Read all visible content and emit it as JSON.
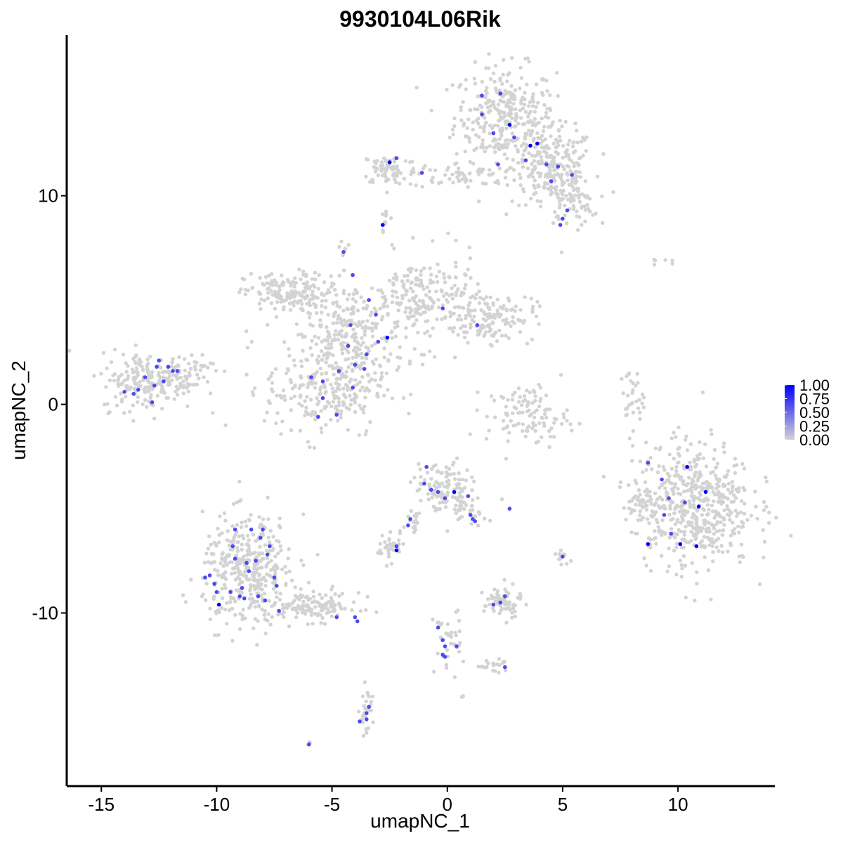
{
  "chart_data": {
    "type": "scatter",
    "title": "9930104L06Rik",
    "xlabel": "umapNC_1",
    "ylabel": "umapNC_2",
    "xlim": [
      -16.5,
      14.2
    ],
    "ylim": [
      -18.3,
      17.7
    ],
    "x_ticks": [
      -15,
      -10,
      -5,
      0,
      5,
      10
    ],
    "x_tick_labels": [
      "-15",
      "-10",
      "-5",
      "0",
      "5",
      "10"
    ],
    "y_ticks": [
      -10,
      0,
      10
    ],
    "y_tick_labels": [
      "-10",
      "0",
      "10"
    ],
    "grid": false,
    "color_scale": {
      "low_color": "#d3d3d3",
      "high_color": "#0000ff",
      "min": 0,
      "max": 1,
      "breaks": [
        1.0,
        0.75,
        0.5,
        0.25,
        0.0
      ],
      "break_labels": [
        "1.00",
        "0.75",
        "0.50",
        "0.25",
        "0.00"
      ],
      "legend_position": "right"
    },
    "background_clusters": [
      {
        "cx": 2.5,
        "cy": 13.8,
        "sx": 1.1,
        "sy": 1.2,
        "n": 320
      },
      {
        "cx": 4.6,
        "cy": 11.4,
        "sx": 0.9,
        "sy": 0.9,
        "n": 200
      },
      {
        "cx": 5.3,
        "cy": 9.7,
        "sx": 0.6,
        "sy": 0.6,
        "n": 80
      },
      {
        "cx": -2.5,
        "cy": 11.3,
        "sx": 0.6,
        "sy": 0.4,
        "n": 70
      },
      {
        "cx": 0.5,
        "cy": 11.0,
        "sx": 1.1,
        "sy": 0.3,
        "n": 60
      },
      {
        "cx": -7.0,
        "cy": 5.3,
        "sx": 0.9,
        "sy": 0.5,
        "n": 160
      },
      {
        "cx": -4.2,
        "cy": 3.3,
        "sx": 1.2,
        "sy": 1.3,
        "n": 260
      },
      {
        "cx": -1.0,
        "cy": 5.0,
        "sx": 1.2,
        "sy": 1.1,
        "n": 200
      },
      {
        "cx": 1.8,
        "cy": 4.2,
        "sx": 1.0,
        "sy": 0.6,
        "n": 140
      },
      {
        "cx": -5.3,
        "cy": 0.8,
        "sx": 1.3,
        "sy": 1.2,
        "n": 240
      },
      {
        "cx": -13.0,
        "cy": 1.1,
        "sx": 1.0,
        "sy": 0.7,
        "n": 180
      },
      {
        "cx": -11.5,
        "cy": 1.6,
        "sx": 0.7,
        "sy": 0.5,
        "n": 60
      },
      {
        "cx": 3.5,
        "cy": -0.5,
        "sx": 0.9,
        "sy": 0.7,
        "n": 110
      },
      {
        "cx": 8.0,
        "cy": 0.3,
        "sx": 0.25,
        "sy": 0.7,
        "n": 30
      },
      {
        "cx": 10.6,
        "cy": -4.8,
        "sx": 1.3,
        "sy": 1.5,
        "n": 560
      },
      {
        "cx": 8.3,
        "cy": -4.5,
        "sx": 0.3,
        "sy": 0.3,
        "n": 20
      },
      {
        "cx": -8.6,
        "cy": -8.0,
        "sx": 1.0,
        "sy": 1.3,
        "n": 380
      },
      {
        "cx": -5.8,
        "cy": -9.7,
        "sx": 1.0,
        "sy": 0.35,
        "n": 120
      },
      {
        "cx": -0.2,
        "cy": -4.0,
        "sx": 0.6,
        "sy": 0.6,
        "n": 110
      },
      {
        "cx": 0.9,
        "cy": -5.0,
        "sx": 0.4,
        "sy": 0.4,
        "n": 40
      },
      {
        "cx": -1.5,
        "cy": -5.6,
        "sx": 0.2,
        "sy": 0.5,
        "n": 20
      },
      {
        "cx": -2.5,
        "cy": -6.9,
        "sx": 0.3,
        "sy": 0.3,
        "n": 40
      },
      {
        "cx": 2.4,
        "cy": -9.5,
        "sx": 0.4,
        "sy": 0.4,
        "n": 70
      },
      {
        "cx": 0.0,
        "cy": -11.4,
        "sx": 0.3,
        "sy": 0.8,
        "n": 35
      },
      {
        "cx": 2.0,
        "cy": -12.5,
        "sx": 0.4,
        "sy": 0.15,
        "n": 20
      },
      {
        "cx": -3.5,
        "cy": -14.8,
        "sx": 0.15,
        "sy": 0.6,
        "n": 25
      },
      {
        "cx": 5.0,
        "cy": -7.3,
        "sx": 0.15,
        "sy": 0.3,
        "n": 12
      },
      {
        "cx": -2.7,
        "cy": 8.8,
        "sx": 0.1,
        "sy": 0.25,
        "n": 10
      },
      {
        "cx": -4.5,
        "cy": 7.4,
        "sx": 0.1,
        "sy": 0.2,
        "n": 6
      },
      {
        "cx": 9.5,
        "cy": 6.8,
        "sx": 0.25,
        "sy": 0.1,
        "n": 6
      },
      {
        "cx": -6.0,
        "cy": -16.3,
        "sx": 0.05,
        "sy": 0.05,
        "n": 3
      },
      {
        "cx": 0.7,
        "cy": -14.0,
        "sx": 0.05,
        "sy": 0.05,
        "n": 3
      }
    ],
    "expressing_cells": [
      {
        "x": 1.5,
        "y": 14.8,
        "v": 0.65
      },
      {
        "x": 2.3,
        "y": 14.9,
        "v": 0.65
      },
      {
        "x": 1.5,
        "y": 13.9,
        "v": 0.65
      },
      {
        "x": 2.0,
        "y": 13.0,
        "v": 0.65
      },
      {
        "x": 2.7,
        "y": 13.4,
        "v": 1.0
      },
      {
        "x": 2.9,
        "y": 12.8,
        "v": 0.65
      },
      {
        "x": 3.6,
        "y": 12.4,
        "v": 1.0
      },
      {
        "x": 3.9,
        "y": 12.5,
        "v": 1.0
      },
      {
        "x": 3.4,
        "y": 11.7,
        "v": 0.65
      },
      {
        "x": 4.3,
        "y": 11.5,
        "v": 0.65
      },
      {
        "x": 4.8,
        "y": 11.4,
        "v": 0.65
      },
      {
        "x": 5.4,
        "y": 11.0,
        "v": 0.65
      },
      {
        "x": 4.5,
        "y": 10.7,
        "v": 0.65
      },
      {
        "x": 2.2,
        "y": 11.5,
        "v": 0.65
      },
      {
        "x": 5.2,
        "y": 9.3,
        "v": 0.65
      },
      {
        "x": 5.0,
        "y": 8.9,
        "v": 0.65
      },
      {
        "x": 4.9,
        "y": 8.6,
        "v": 0.65
      },
      {
        "x": -2.5,
        "y": 11.6,
        "v": 1.0
      },
      {
        "x": -2.2,
        "y": 11.8,
        "v": 0.65
      },
      {
        "x": -1.1,
        "y": 11.1,
        "v": 0.65
      },
      {
        "x": -2.8,
        "y": 8.6,
        "v": 1.0
      },
      {
        "x": -4.5,
        "y": 7.3,
        "v": 0.65
      },
      {
        "x": -4.1,
        "y": 6.2,
        "v": 0.65
      },
      {
        "x": -3.4,
        "y": 5.0,
        "v": 0.65
      },
      {
        "x": -3.1,
        "y": 4.3,
        "v": 0.65
      },
      {
        "x": -4.2,
        "y": 3.8,
        "v": 0.65
      },
      {
        "x": -4.3,
        "y": 2.8,
        "v": 0.65
      },
      {
        "x": -3.5,
        "y": 2.4,
        "v": 0.65
      },
      {
        "x": -3.0,
        "y": 3.0,
        "v": 0.65
      },
      {
        "x": -2.6,
        "y": 3.2,
        "v": 1.0
      },
      {
        "x": -4.7,
        "y": 1.6,
        "v": 0.65
      },
      {
        "x": -4.0,
        "y": 1.9,
        "v": 0.65
      },
      {
        "x": -3.6,
        "y": 1.7,
        "v": 0.65
      },
      {
        "x": -4.1,
        "y": 0.8,
        "v": 0.65
      },
      {
        "x": -5.4,
        "y": 1.1,
        "v": 0.65
      },
      {
        "x": -5.9,
        "y": 1.3,
        "v": 0.65
      },
      {
        "x": -5.4,
        "y": 0.3,
        "v": 0.65
      },
      {
        "x": -5.6,
        "y": -0.6,
        "v": 0.65
      },
      {
        "x": -4.8,
        "y": -0.5,
        "v": 0.65
      },
      {
        "x": -0.2,
        "y": 4.6,
        "v": 0.65
      },
      {
        "x": 1.3,
        "y": 3.8,
        "v": 0.65
      },
      {
        "x": -13.6,
        "y": 0.5,
        "v": 0.65
      },
      {
        "x": -13.4,
        "y": 0.7,
        "v": 0.65
      },
      {
        "x": -12.7,
        "y": 0.9,
        "v": 0.65
      },
      {
        "x": -12.6,
        "y": 1.8,
        "v": 0.65
      },
      {
        "x": -12.5,
        "y": 2.1,
        "v": 0.65
      },
      {
        "x": -12.1,
        "y": 1.8,
        "v": 0.65
      },
      {
        "x": -11.9,
        "y": 1.6,
        "v": 0.65
      },
      {
        "x": -11.7,
        "y": 1.6,
        "v": 0.65
      },
      {
        "x": -12.3,
        "y": 1.1,
        "v": 0.65
      },
      {
        "x": -13.1,
        "y": 1.3,
        "v": 0.65
      },
      {
        "x": -12.8,
        "y": 0.1,
        "v": 0.65
      },
      {
        "x": -14.0,
        "y": 0.6,
        "v": 0.65
      },
      {
        "x": -0.9,
        "y": -3.0,
        "v": 0.65
      },
      {
        "x": -1.0,
        "y": -3.8,
        "v": 0.65
      },
      {
        "x": -0.7,
        "y": -4.1,
        "v": 0.65
      },
      {
        "x": -0.4,
        "y": -4.2,
        "v": 0.65
      },
      {
        "x": 0.3,
        "y": -4.2,
        "v": 1.0
      },
      {
        "x": 0.9,
        "y": -4.4,
        "v": 0.65
      },
      {
        "x": -0.1,
        "y": -4.5,
        "v": 0.65
      },
      {
        "x": 1.0,
        "y": -5.3,
        "v": 0.65
      },
      {
        "x": 1.1,
        "y": -5.5,
        "v": 0.65
      },
      {
        "x": 1.2,
        "y": -5.6,
        "v": 0.65
      },
      {
        "x": -1.6,
        "y": -5.5,
        "v": 0.65
      },
      {
        "x": -1.7,
        "y": -5.8,
        "v": 0.65
      },
      {
        "x": -2.2,
        "y": -6.8,
        "v": 0.65
      },
      {
        "x": -2.2,
        "y": -7.0,
        "v": 1.0
      },
      {
        "x": 2.7,
        "y": -5.0,
        "v": 0.65
      },
      {
        "x": 10.4,
        "y": -3.0,
        "v": 1.0
      },
      {
        "x": 11.2,
        "y": -4.2,
        "v": 1.0
      },
      {
        "x": 10.9,
        "y": -4.9,
        "v": 1.0
      },
      {
        "x": 10.3,
        "y": -4.7,
        "v": 0.65
      },
      {
        "x": 9.6,
        "y": -4.5,
        "v": 0.65
      },
      {
        "x": 9.4,
        "y": -5.3,
        "v": 0.65
      },
      {
        "x": 8.7,
        "y": -6.7,
        "v": 1.0
      },
      {
        "x": 10.1,
        "y": -6.7,
        "v": 1.0
      },
      {
        "x": 10.8,
        "y": -6.8,
        "v": 1.0
      },
      {
        "x": 9.7,
        "y": -6.2,
        "v": 0.65
      },
      {
        "x": 8.7,
        "y": -2.8,
        "v": 0.65
      },
      {
        "x": 9.3,
        "y": -3.6,
        "v": 0.65
      },
      {
        "x": -9.9,
        "y": -9.6,
        "v": 1.0
      },
      {
        "x": -10.0,
        "y": -9.0,
        "v": 0.65
      },
      {
        "x": -10.1,
        "y": -8.6,
        "v": 0.65
      },
      {
        "x": -10.3,
        "y": -8.2,
        "v": 0.65
      },
      {
        "x": -9.4,
        "y": -9.0,
        "v": 0.65
      },
      {
        "x": -9.0,
        "y": -9.2,
        "v": 0.65
      },
      {
        "x": -8.9,
        "y": -8.8,
        "v": 0.65
      },
      {
        "x": -8.6,
        "y": -8.0,
        "v": 0.65
      },
      {
        "x": -8.3,
        "y": -7.5,
        "v": 0.65
      },
      {
        "x": -7.8,
        "y": -7.2,
        "v": 0.65
      },
      {
        "x": -7.7,
        "y": -6.8,
        "v": 0.65
      },
      {
        "x": -8.1,
        "y": -6.4,
        "v": 0.65
      },
      {
        "x": -8.0,
        "y": -6.0,
        "v": 0.65
      },
      {
        "x": -8.5,
        "y": -6.0,
        "v": 0.65
      },
      {
        "x": -9.2,
        "y": -6.0,
        "v": 0.65
      },
      {
        "x": -9.3,
        "y": -6.8,
        "v": 0.65
      },
      {
        "x": -9.2,
        "y": -7.4,
        "v": 0.65
      },
      {
        "x": -8.7,
        "y": -7.6,
        "v": 0.65
      },
      {
        "x": -7.5,
        "y": -8.3,
        "v": 0.65
      },
      {
        "x": -7.4,
        "y": -8.7,
        "v": 0.65
      },
      {
        "x": -7.9,
        "y": -9.4,
        "v": 0.65
      },
      {
        "x": -8.2,
        "y": -9.2,
        "v": 0.65
      },
      {
        "x": -8.8,
        "y": -9.3,
        "v": 0.65
      },
      {
        "x": -7.3,
        "y": -9.9,
        "v": 0.65
      },
      {
        "x": -10.5,
        "y": -8.3,
        "v": 0.65
      },
      {
        "x": -4.8,
        "y": -10.2,
        "v": 0.65
      },
      {
        "x": -4.0,
        "y": -10.2,
        "v": 0.65
      },
      {
        "x": -3.9,
        "y": -10.4,
        "v": 0.65
      },
      {
        "x": 2.5,
        "y": -9.2,
        "v": 0.65
      },
      {
        "x": 2.3,
        "y": -9.5,
        "v": 0.65
      },
      {
        "x": 2.0,
        "y": -9.6,
        "v": 0.65
      },
      {
        "x": 5.0,
        "y": -7.3,
        "v": 0.65
      },
      {
        "x": -0.4,
        "y": -10.7,
        "v": 0.65
      },
      {
        "x": -0.2,
        "y": -11.3,
        "v": 0.65
      },
      {
        "x": -0.1,
        "y": -11.6,
        "v": 0.65
      },
      {
        "x": -0.2,
        "y": -12.0,
        "v": 0.65
      },
      {
        "x": -0.1,
        "y": -12.1,
        "v": 0.65
      },
      {
        "x": 0.4,
        "y": -11.6,
        "v": 0.65
      },
      {
        "x": 2.5,
        "y": -12.6,
        "v": 0.65
      },
      {
        "x": -3.4,
        "y": -14.5,
        "v": 0.65
      },
      {
        "x": -3.5,
        "y": -14.8,
        "v": 0.65
      },
      {
        "x": -3.5,
        "y": -15.1,
        "v": 0.65
      },
      {
        "x": -3.8,
        "y": -15.2,
        "v": 0.65
      },
      {
        "x": -6.0,
        "y": -16.3,
        "v": 0.65
      }
    ]
  }
}
